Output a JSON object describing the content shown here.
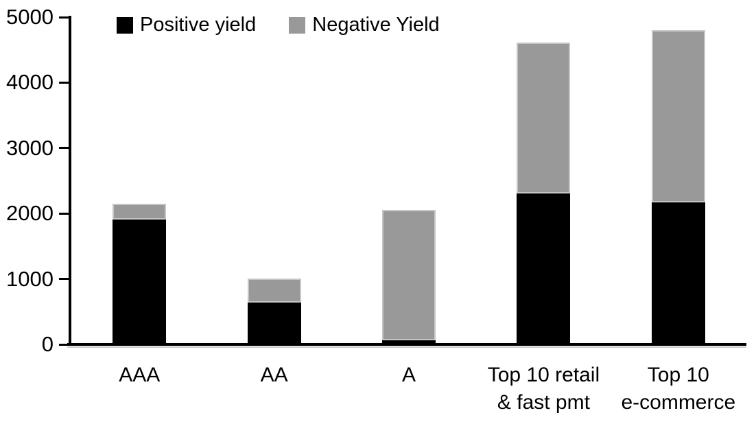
{
  "colors": {
    "positive": "#000000",
    "negative": "#999999",
    "axis": "#000000",
    "background": "#ffffff"
  },
  "chart_data": {
    "type": "bar",
    "stacked": true,
    "title": "",
    "xlabel": "",
    "ylabel": "",
    "categories": [
      "AAA",
      "AA",
      "A",
      "Top 10 retail\n& fast pmt",
      "Top 10\ne-commerce"
    ],
    "series": [
      {
        "name": "Positive yield",
        "color": "#000000",
        "values": [
          1900,
          630,
          50,
          2300,
          2160
        ]
      },
      {
        "name": "Negative Yield",
        "color": "#999999",
        "values": [
          240,
          370,
          1990,
          2300,
          2630
        ]
      }
    ],
    "totals": [
      2140,
      1000,
      2040,
      4600,
      4790
    ],
    "ylim": [
      0,
      5000
    ],
    "yticks": [
      "0",
      "1000",
      "2000",
      "3000",
      "4000",
      "5000"
    ],
    "grid": false,
    "legend_position": "top"
  }
}
